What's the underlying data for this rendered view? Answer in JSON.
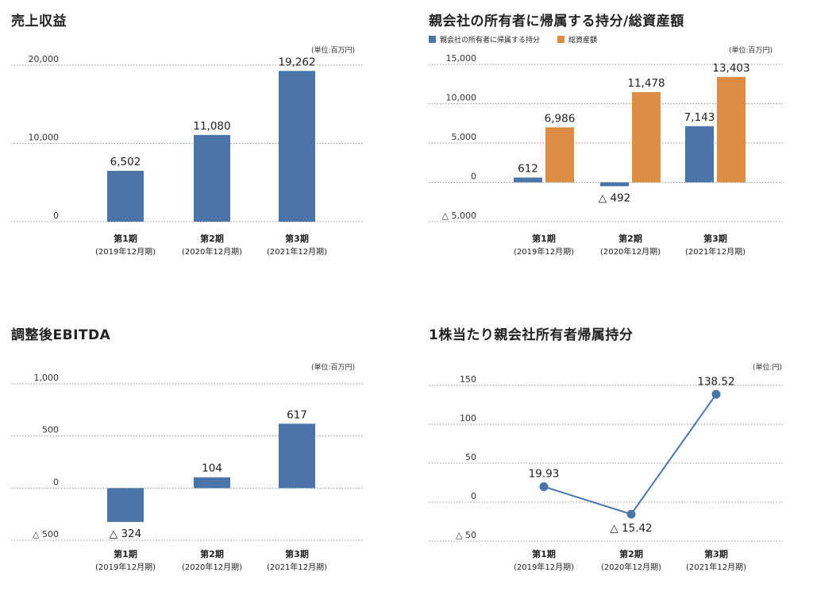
{
  "colors": {
    "blue": "#4b74a8",
    "orange": "#dc8d43",
    "grid": "#9a9a9a"
  },
  "categories": [
    {
      "main": "第1期",
      "sub": "(2019年12月期)"
    },
    {
      "main": "第2期",
      "sub": "(2020年12月期)"
    },
    {
      "main": "第3期",
      "sub": "(2021年12月期)"
    }
  ],
  "panels": {
    "revenue": {
      "title": "売上収益",
      "unit": "(単位:百万円)",
      "chart_data": {
        "type": "bar",
        "title": "売上収益",
        "categories": [
          "第1期",
          "第2期",
          "第3期"
        ],
        "series": [
          {
            "name": "",
            "values": [
              6502,
              11080,
              19262
            ]
          }
        ],
        "value_labels": [
          "6,502",
          "11,080",
          "19,262"
        ],
        "yticks": [
          0,
          10000,
          20000
        ],
        "ytick_labels": [
          "0",
          "10,000",
          "20,000"
        ],
        "ylim": [
          0,
          20000
        ],
        "grid": true
      }
    },
    "equity": {
      "title": "親会社の所有者に帰属する持分/総資産額",
      "unit": "(単位:百万円)",
      "legend": [
        "親会社の所有者に帰属する持分",
        "総資産額"
      ],
      "chart_data": {
        "type": "bar",
        "title": "親会社の所有者に帰属する持分/総資産額",
        "categories": [
          "第1期",
          "第2期",
          "第3期"
        ],
        "series": [
          {
            "name": "親会社の所有者に帰属する持分",
            "values": [
              612,
              -492,
              7143
            ],
            "labels": [
              "612",
              "△ 492",
              "7,143"
            ]
          },
          {
            "name": "総資産額",
            "values": [
              6986,
              11478,
              13403
            ],
            "labels": [
              "6,986",
              "11,478",
              "13,403"
            ]
          }
        ],
        "yticks": [
          -5000,
          0,
          5000,
          10000,
          15000
        ],
        "ytick_labels": [
          "△ 5,000",
          "0",
          "5,000",
          "10,000",
          "15,000"
        ],
        "ylim": [
          -5000,
          15000
        ],
        "legend_position": "top-left",
        "grid": true
      }
    },
    "ebitda": {
      "title": "調整後EBITDA",
      "unit": "(単位:百万円)",
      "chart_data": {
        "type": "bar",
        "title": "調整後EBITDA",
        "categories": [
          "第1期",
          "第2期",
          "第3期"
        ],
        "series": [
          {
            "name": "",
            "values": [
              -324,
              104,
              617
            ]
          }
        ],
        "value_labels": [
          "△ 324",
          "104",
          "617"
        ],
        "yticks": [
          -500,
          0,
          500,
          1000
        ],
        "ytick_labels": [
          "△ 500",
          "0",
          "500",
          "1,000"
        ],
        "ylim": [
          -500,
          1000
        ],
        "grid": true
      }
    },
    "per_share": {
      "title": "1株当たり親会社所有者帰属持分",
      "unit": "(単位:円)",
      "chart_data": {
        "type": "line",
        "title": "1株当たり親会社所有者帰属持分",
        "categories": [
          "第1期",
          "第2期",
          "第3期"
        ],
        "series": [
          {
            "name": "",
            "values": [
              19.93,
              -15.42,
              138.52
            ]
          }
        ],
        "value_labels": [
          "19.93",
          "△ 15.42",
          "138.52"
        ],
        "yticks": [
          -50,
          0,
          50,
          100,
          150
        ],
        "ytick_labels": [
          "△ 50",
          "0",
          "50",
          "100",
          "150"
        ],
        "ylim": [
          -50,
          150
        ],
        "grid": true
      }
    }
  }
}
